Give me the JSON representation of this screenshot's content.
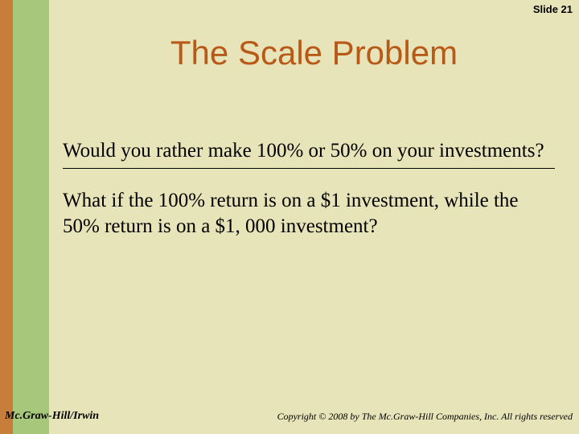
{
  "slide": {
    "number_label": "Slide 21",
    "title": "The Scale Problem",
    "paragraph1": "Would you rather make 100% or 50% on your investments?",
    "paragraph2": "What if the 100% return is on a $1 investment, while the 50% return is on a $1, 000 investment?",
    "publisher": "Mc.Graw-Hill/Irwin",
    "copyright": "Copyright © 2008 by The Mc.Graw-Hill Companies, Inc. All rights reserved"
  },
  "colors": {
    "background": "#e6e4b8",
    "accent_bar_outer": "#c87d3a",
    "accent_bar_inner": "#a7c77b",
    "title_color": "#b95917",
    "text_color": "#000000"
  }
}
